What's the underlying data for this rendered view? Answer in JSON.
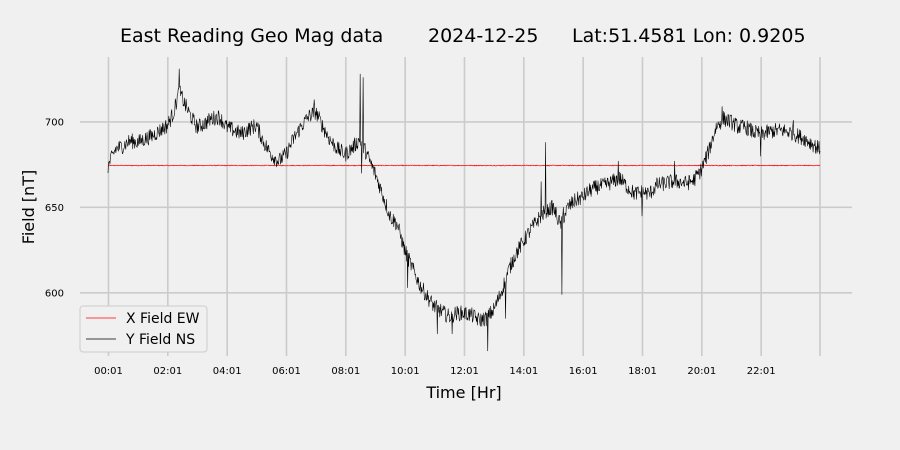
{
  "chart_data": {
    "type": "line",
    "title_parts": {
      "name": "East Reading Geo Mag data",
      "date": "2024-12-25",
      "location": "Lat:51.4581  Lon: 0.9205"
    },
    "xlabel": "Time  [Hr]",
    "ylabel": "Field  [nT]",
    "x_unit": "hours",
    "xlim": [
      0.0,
      24.0
    ],
    "ylim": [
      563,
      738
    ],
    "x_ticks": [
      {
        "x": 0.0167,
        "label": "00:01"
      },
      {
        "x": 2.0167,
        "label": "02:01"
      },
      {
        "x": 4.0167,
        "label": "04:01"
      },
      {
        "x": 6.0167,
        "label": "06:01"
      },
      {
        "x": 8.0167,
        "label": "08:01"
      },
      {
        "x": 10.0167,
        "label": "10:01"
      },
      {
        "x": 12.0167,
        "label": "12:01"
      },
      {
        "x": 14.0167,
        "label": "14:01"
      },
      {
        "x": 16.0167,
        "label": "16:01"
      },
      {
        "x": 18.0167,
        "label": "18:01"
      },
      {
        "x": 20.0167,
        "label": "20:01"
      },
      {
        "x": 22.0167,
        "label": "22:01"
      }
    ],
    "extra_vgrid_x": [
      24.0
    ],
    "y_ticks": [
      600,
      650,
      700
    ],
    "grid": true,
    "legend": "lower-left",
    "series": [
      {
        "name": "X Field EW",
        "color": "#ff0000",
        "points": [
          [
            0.0,
            674.5
          ],
          [
            24.0,
            674.5
          ]
        ]
      },
      {
        "name": "Y Field NS",
        "color": "#000000",
        "points": [
          [
            0.0,
            674
          ],
          [
            0.25,
            684
          ],
          [
            0.5,
            686
          ],
          [
            0.75,
            689
          ],
          [
            1.0,
            688
          ],
          [
            1.25,
            690
          ],
          [
            1.5,
            692
          ],
          [
            1.75,
            695
          ],
          [
            2.0,
            698
          ],
          [
            2.2,
            705
          ],
          [
            2.4,
            718
          ],
          [
            2.6,
            710
          ],
          [
            2.8,
            703
          ],
          [
            3.0,
            697
          ],
          [
            3.25,
            699
          ],
          [
            3.5,
            702
          ],
          [
            3.75,
            703
          ],
          [
            4.0,
            697
          ],
          [
            4.25,
            695
          ],
          [
            4.5,
            693
          ],
          [
            4.75,
            696
          ],
          [
            5.0,
            698
          ],
          [
            5.25,
            688
          ],
          [
            5.5,
            681
          ],
          [
            5.75,
            677
          ],
          [
            6.0,
            681
          ],
          [
            6.25,
            690
          ],
          [
            6.5,
            697
          ],
          [
            6.75,
            703
          ],
          [
            7.0,
            706
          ],
          [
            7.25,
            697
          ],
          [
            7.5,
            689
          ],
          [
            7.75,
            684
          ],
          [
            8.0,
            681
          ],
          [
            8.25,
            685
          ],
          [
            8.5,
            690
          ],
          [
            8.75,
            680
          ],
          [
            9.0,
            670
          ],
          [
            9.25,
            658
          ],
          [
            9.5,
            645
          ],
          [
            9.75,
            640
          ],
          [
            10.0,
            625
          ],
          [
            10.25,
            615
          ],
          [
            10.5,
            605
          ],
          [
            10.75,
            598
          ],
          [
            11.0,
            592
          ],
          [
            11.25,
            589
          ],
          [
            11.5,
            586
          ],
          [
            11.75,
            588
          ],
          [
            12.0,
            588
          ],
          [
            12.25,
            587
          ],
          [
            12.5,
            584
          ],
          [
            12.75,
            585
          ],
          [
            13.0,
            590
          ],
          [
            13.25,
            600
          ],
          [
            13.5,
            613
          ],
          [
            13.75,
            623
          ],
          [
            14.0,
            630
          ],
          [
            14.25,
            637
          ],
          [
            14.5,
            643
          ],
          [
            14.75,
            648
          ],
          [
            15.0,
            650
          ],
          [
            15.25,
            640
          ],
          [
            15.5,
            650
          ],
          [
            15.75,
            654
          ],
          [
            16.0,
            656
          ],
          [
            16.25,
            660
          ],
          [
            16.5,
            662
          ],
          [
            16.75,
            663
          ],
          [
            17.0,
            665
          ],
          [
            17.25,
            667
          ],
          [
            17.5,
            662
          ],
          [
            17.75,
            658
          ],
          [
            18.0,
            659
          ],
          [
            18.25,
            658
          ],
          [
            18.5,
            663
          ],
          [
            18.75,
            664
          ],
          [
            19.0,
            665
          ],
          [
            19.25,
            665
          ],
          [
            19.5,
            664
          ],
          [
            19.75,
            666
          ],
          [
            20.0,
            672
          ],
          [
            20.25,
            683
          ],
          [
            20.5,
            697
          ],
          [
            20.75,
            702
          ],
          [
            21.0,
            700
          ],
          [
            21.25,
            697
          ],
          [
            21.5,
            697
          ],
          [
            21.75,
            694
          ],
          [
            22.0,
            693
          ],
          [
            22.25,
            694
          ],
          [
            22.5,
            695
          ],
          [
            22.75,
            695
          ],
          [
            23.0,
            694
          ],
          [
            23.25,
            692
          ],
          [
            23.5,
            690
          ],
          [
            23.75,
            687
          ],
          [
            24.0,
            684
          ]
        ],
        "spikes": [
          [
            2.4,
            731
          ],
          [
            6.95,
            713
          ],
          [
            8.5,
            728
          ],
          [
            8.55,
            670
          ],
          [
            8.6,
            726
          ],
          [
            10.1,
            603
          ],
          [
            11.1,
            576
          ],
          [
            11.6,
            576
          ],
          [
            12.8,
            566
          ],
          [
            13.4,
            585
          ],
          [
            14.6,
            665
          ],
          [
            14.75,
            688
          ],
          [
            14.85,
            650
          ],
          [
            15.3,
            599
          ],
          [
            15.35,
            650
          ],
          [
            17.2,
            677
          ],
          [
            18.0,
            645
          ],
          [
            19.1,
            677
          ],
          [
            20.7,
            709
          ],
          [
            22.0,
            680
          ],
          [
            23.1,
            701
          ]
        ]
      }
    ]
  }
}
